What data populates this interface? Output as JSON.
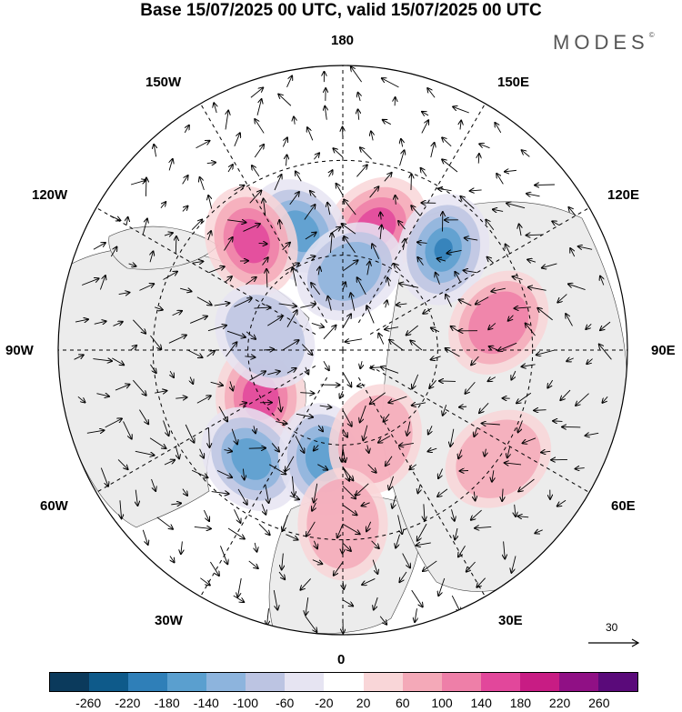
{
  "title": "Base 15/07/2025 00 UTC, valid 15/07/2025 00 UTC",
  "logo": "MODES",
  "logo_mark": "©",
  "longitude_labels": {
    "lon_180": "180",
    "lon_150w": "150W",
    "lon_150e": "150E",
    "lon_120w": "120W",
    "lon_120e": "120E",
    "lon_90w": "90W",
    "lon_90e": "90E",
    "lon_60w": "60W",
    "lon_60e": "60E",
    "lon_30w": "30W",
    "lon_30e": "30E",
    "lon_0": "0"
  },
  "reference_vector": "30",
  "colorbar": {
    "colors": [
      "#0b3a5c",
      "#0e5a8a",
      "#2f7fb8",
      "#5a9fcf",
      "#8db4dd",
      "#bcc4e2",
      "#e6e4f2",
      "#ffffff",
      "#f9d6d8",
      "#f4a9b8",
      "#ee7fa8",
      "#e2479b",
      "#c81c84",
      "#901085",
      "#5a0a7a"
    ],
    "ticks": [
      "-260",
      "-220",
      "-180",
      "-140",
      "-100",
      "-60",
      "-20",
      "20",
      "60",
      "100",
      "140",
      "180",
      "220",
      "260"
    ]
  },
  "anomaly_blobs": [
    {
      "lon": 165,
      "lat": 50,
      "value": 150
    },
    {
      "lon": 135,
      "lat": 45,
      "value": -200
    },
    {
      "lon": -160,
      "lat": 50,
      "value": -170
    },
    {
      "lon": -140,
      "lat": 45,
      "value": 150
    },
    {
      "lon": 100,
      "lat": 40,
      "value": 110
    },
    {
      "lon": -60,
      "lat": 60,
      "value": 140
    },
    {
      "lon": -40,
      "lat": 45,
      "value": -170
    },
    {
      "lon": -10,
      "lat": 55,
      "value": -160
    },
    {
      "lon": 20,
      "lat": 60,
      "value": 80
    },
    {
      "lon": 0,
      "lat": 35,
      "value": 60
    },
    {
      "lon": 55,
      "lat": 30,
      "value": 70
    },
    {
      "lon": -100,
      "lat": 65,
      "value": -60
    },
    {
      "lon": 175,
      "lat": 65,
      "value": -100
    }
  ]
}
